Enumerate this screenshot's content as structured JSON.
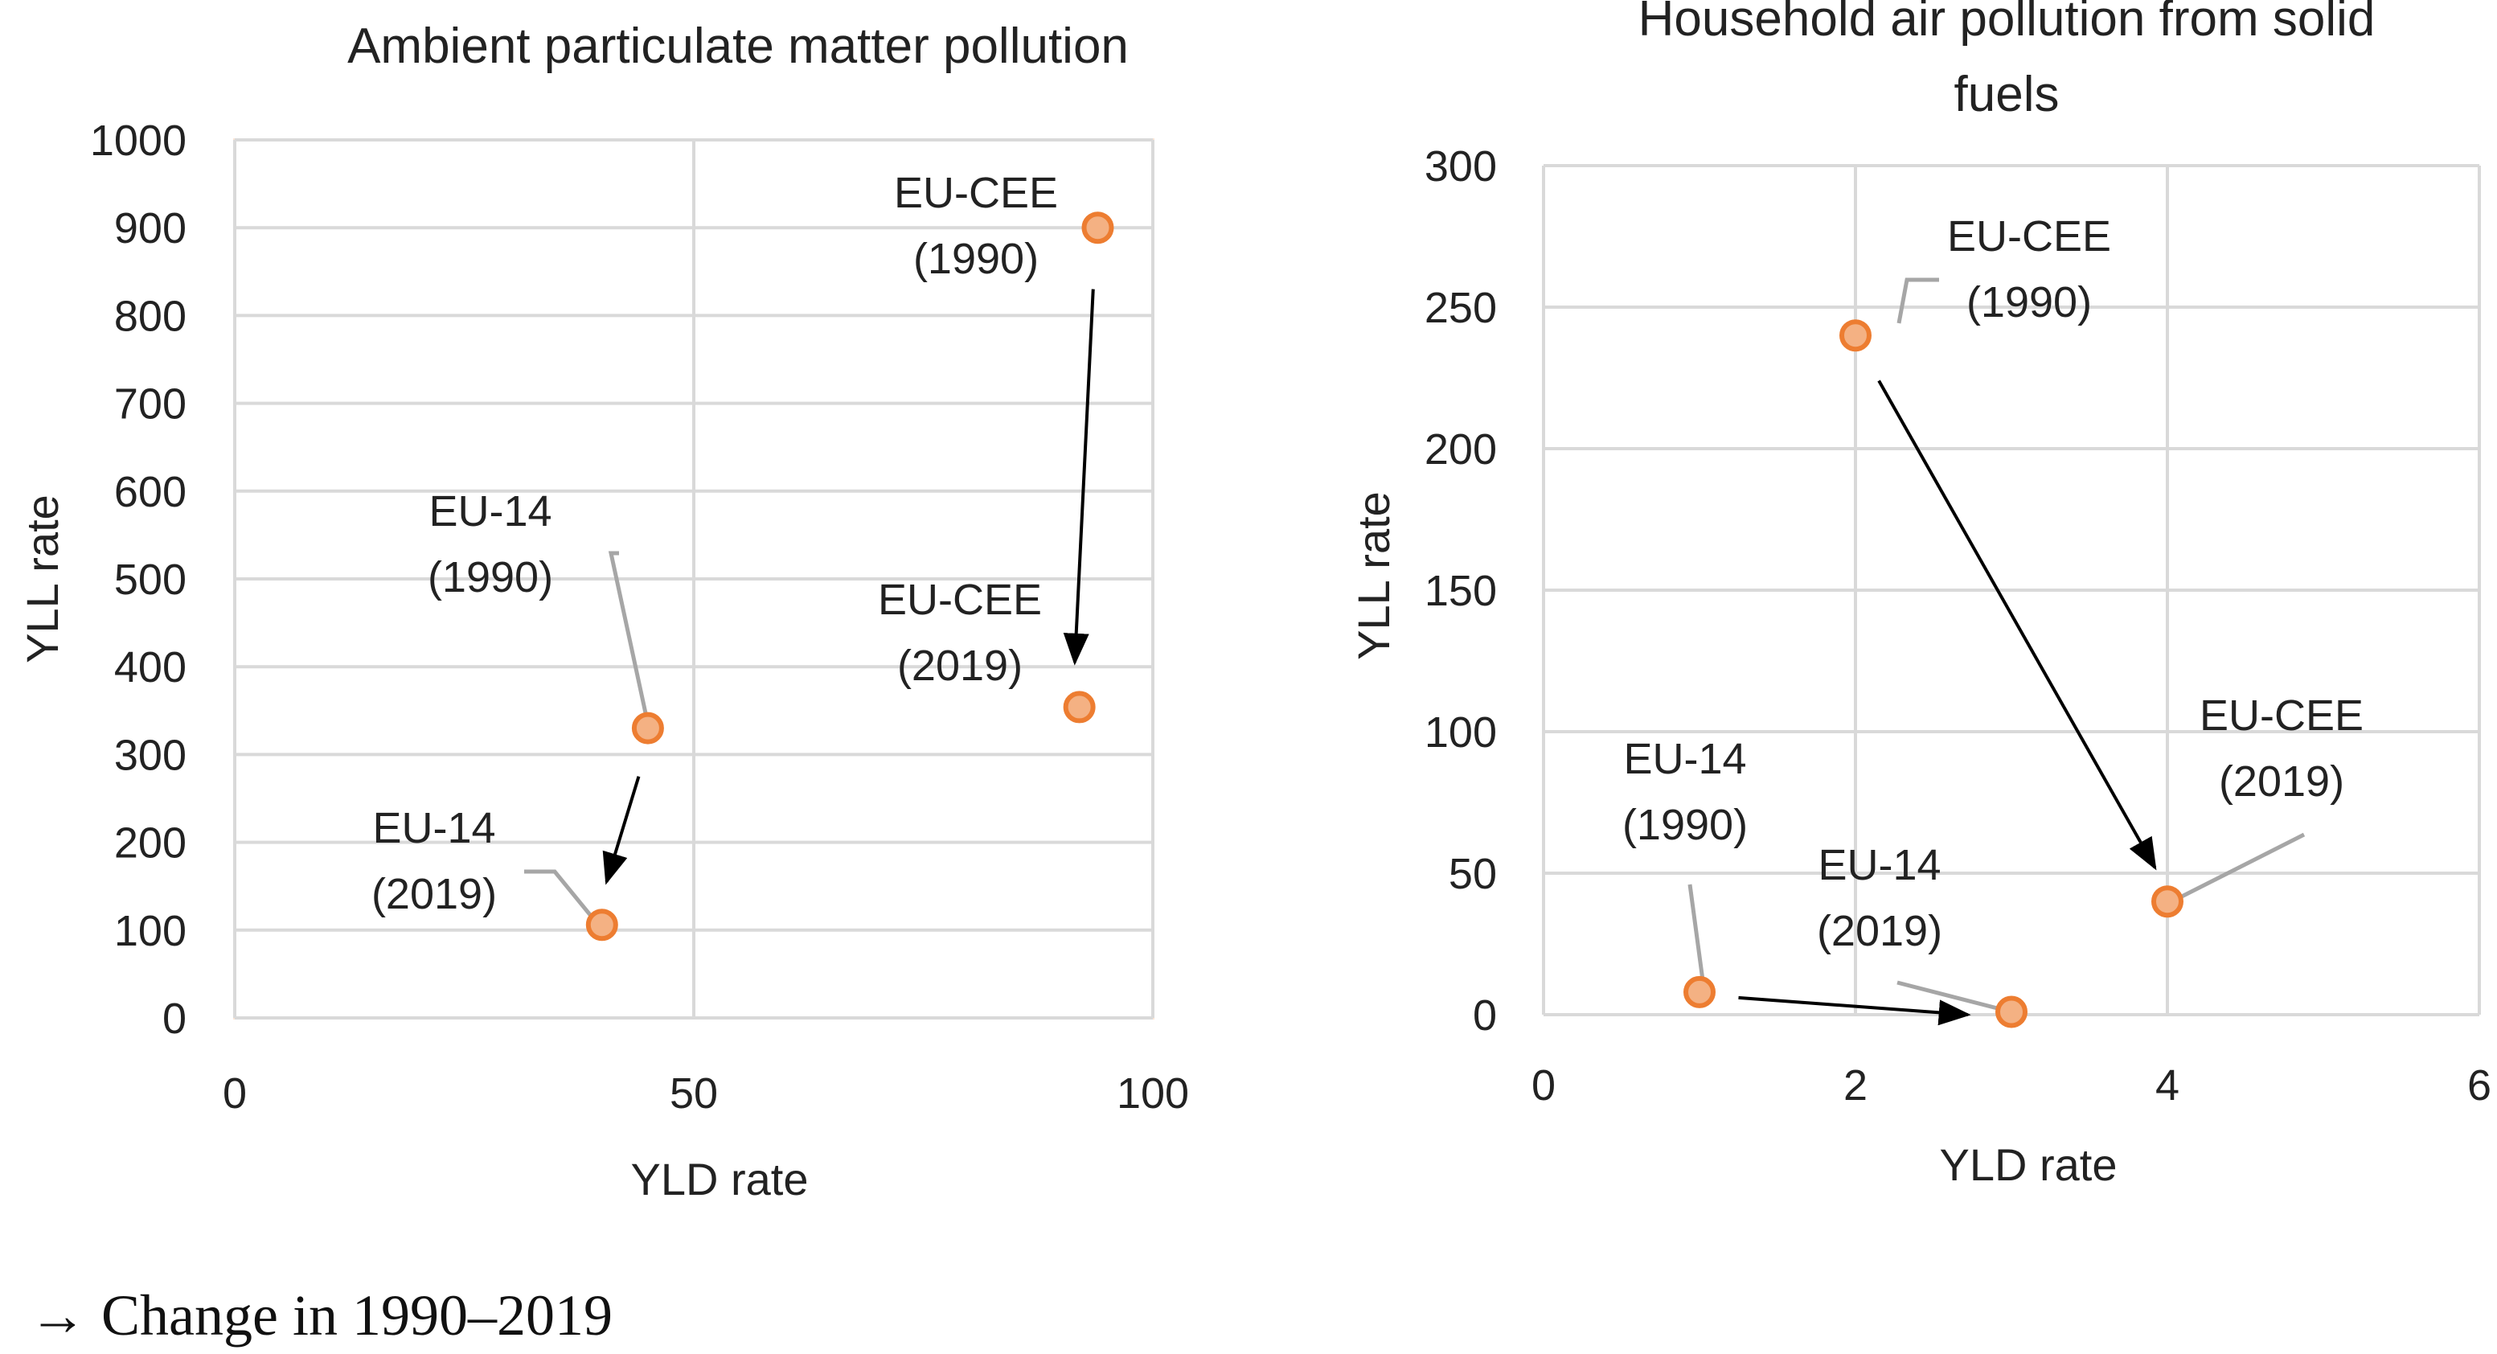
{
  "colors": {
    "grid": "#d9d9d9",
    "point_fill": "#f4b183",
    "point_stroke": "#ed7d31",
    "leader": "#a6a6a6",
    "arrow": "#000000",
    "plot_border": "#fbe5d6"
  },
  "chart_data": [
    {
      "type": "scatter",
      "title": "Ambient particulate matter pollution",
      "title_lines": [
        "Ambient particulate matter pollution"
      ],
      "xlabel": "YLD rate",
      "ylabel": "YLL rate",
      "xlim": [
        0,
        100
      ],
      "ylim": [
        0,
        1000
      ],
      "xticks": [
        "0",
        "50",
        "100"
      ],
      "xtick_values": [
        0,
        50,
        100
      ],
      "yticks": [
        "0",
        "100",
        "200",
        "300",
        "400",
        "500",
        "600",
        "700",
        "800",
        "900",
        "1000"
      ],
      "ytick_values": [
        0,
        100,
        200,
        300,
        400,
        500,
        600,
        700,
        800,
        900,
        1000
      ],
      "grid": true,
      "points": [
        {
          "x": 94,
          "y": 900,
          "label": [
            "EU-CEE",
            "(1990)"
          ]
        },
        {
          "x": 92,
          "y": 354,
          "label": [
            "EU-CEE",
            "(2019)"
          ]
        },
        {
          "x": 45,
          "y": 330,
          "label": [
            "EU-14",
            "(1990)"
          ]
        },
        {
          "x": 40,
          "y": 106,
          "label": [
            "EU-14",
            "(2019)"
          ]
        }
      ],
      "arrows": [
        {
          "from": [
            93.5,
            830
          ],
          "to": [
            91.5,
            405
          ]
        },
        {
          "from": [
            44,
            275
          ],
          "to": [
            40.5,
            155
          ]
        }
      ]
    },
    {
      "type": "scatter",
      "title": "Household air pollution from solid fuels",
      "title_lines": [
        "Household air pollution from solid",
        "fuels"
      ],
      "xlabel": "YLD rate",
      "ylabel": "YLL rate",
      "xlim": [
        0,
        6
      ],
      "ylim": [
        0,
        300
      ],
      "xticks": [
        "0",
        "2",
        "4",
        "6"
      ],
      "xtick_values": [
        0,
        2,
        4,
        6
      ],
      "yticks": [
        "0",
        "50",
        "100",
        "150",
        "200",
        "250",
        "300"
      ],
      "ytick_values": [
        0,
        50,
        100,
        150,
        200,
        250,
        300
      ],
      "grid": true,
      "points": [
        {
          "x": 2,
          "y": 240,
          "label": [
            "EU-CEE",
            "(1990)"
          ]
        },
        {
          "x": 4,
          "y": 40,
          "label": [
            "EU-CEE",
            "(2019)"
          ]
        },
        {
          "x": 1,
          "y": 8,
          "label": [
            "EU-14",
            "(1990)"
          ]
        },
        {
          "x": 3,
          "y": 1,
          "label": [
            "EU-14",
            "(2019)"
          ]
        }
      ],
      "arrows": [
        {
          "from": [
            2.15,
            224
          ],
          "to": [
            3.92,
            52
          ]
        },
        {
          "from": [
            1.25,
            6
          ],
          "to": [
            2.72,
            0
          ]
        }
      ]
    }
  ],
  "footnote": "→ Change in 1990–2019"
}
